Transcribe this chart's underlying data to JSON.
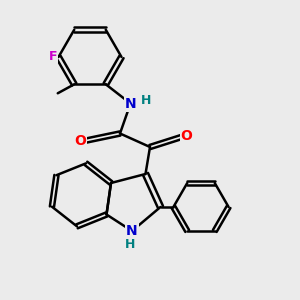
{
  "bg_color": "#ebebeb",
  "bond_color": "#000000",
  "bond_width": 1.8,
  "atom_colors": {
    "N": "#0000cc",
    "H": "#008080",
    "O": "#ff0000",
    "F": "#cc00cc"
  },
  "figsize": [
    3.0,
    3.0
  ],
  "dpi": 100,
  "xlim": [
    0,
    10
  ],
  "ylim": [
    0,
    10
  ]
}
